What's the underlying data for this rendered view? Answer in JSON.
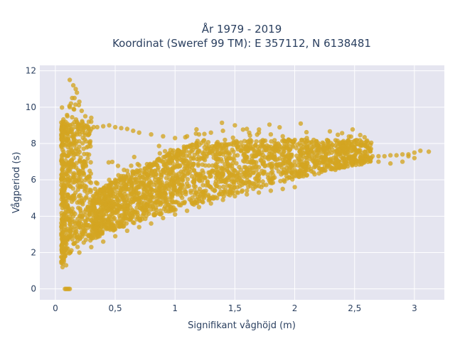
{
  "chart_data": {
    "type": "scatter",
    "title_line1": "År 1979 - 2019",
    "title_line2": "Koordinat (Sweref 99 TM): E 357112, N 6138481",
    "xlabel": "Signifikant våghöjd (m)",
    "ylabel": "Vågperiod (s)",
    "xlim": [
      -0.13,
      3.25
    ],
    "ylim": [
      -0.6,
      12.3
    ],
    "grid": true,
    "marker_color": "#D4A521",
    "background_color": "#E5E5F0",
    "x_ticks": [
      {
        "value": 0,
        "label": "0"
      },
      {
        "value": 0.5,
        "label": "0,5"
      },
      {
        "value": 1,
        "label": "1"
      },
      {
        "value": 1.5,
        "label": "1,5"
      },
      {
        "value": 2,
        "label": "2"
      },
      {
        "value": 2.5,
        "label": "2,5"
      },
      {
        "value": 3,
        "label": "3"
      }
    ],
    "y_ticks": [
      {
        "value": 0,
        "label": "0"
      },
      {
        "value": 2,
        "label": "2"
      },
      {
        "value": 4,
        "label": "4"
      },
      {
        "value": 6,
        "label": "6"
      },
      {
        "value": 8,
        "label": "8"
      },
      {
        "value": 10,
        "label": "10"
      },
      {
        "value": 12,
        "label": "12"
      }
    ],
    "series": [
      {
        "x": [
          0.06,
          0.07,
          0.08,
          0.05,
          0.06,
          0.08,
          0.1,
          0.12,
          0.09,
          0.07,
          0.1,
          0.12,
          0.15,
          0.18,
          0.2,
          0.22,
          0.1,
          0.13,
          0.16,
          0.19,
          0.25,
          0.3,
          0.35,
          0.4,
          0.45,
          0.5,
          0.55,
          0.6,
          0.65,
          0.7,
          0.75,
          0.8,
          0.85,
          0.9,
          0.95,
          1.0,
          1.05,
          1.1,
          1.15,
          1.2,
          1.25,
          1.3,
          1.35,
          1.4,
          1.45,
          1.5,
          1.55,
          1.6,
          1.65,
          1.7,
          1.75,
          1.8,
          1.85,
          1.9,
          1.95,
          2.0,
          2.05,
          2.1,
          2.15,
          2.2,
          2.25,
          2.3,
          2.35,
          2.4,
          2.45,
          2.5,
          2.55,
          2.6,
          2.65,
          2.7,
          2.75,
          2.8,
          2.85,
          2.9,
          2.95,
          3.0,
          3.05,
          3.12,
          0.12,
          0.15,
          0.18,
          0.2,
          0.22,
          0.25,
          0.28,
          0.32,
          0.12,
          0.14,
          0.17,
          0.11,
          0.13,
          0.15,
          0.3,
          0.35,
          0.4,
          0.45,
          0.5,
          0.55,
          0.6,
          0.65,
          0.7,
          0.8,
          0.9,
          1.0,
          1.1,
          1.2,
          1.3,
          1.4,
          1.5,
          1.6,
          1.7,
          1.8,
          1.9,
          2.0,
          2.1,
          2.2,
          0.2,
          0.3,
          0.4,
          0.5,
          0.6,
          0.7,
          0.8,
          0.9,
          1.0,
          1.1,
          1.2,
          1.3,
          1.4,
          1.5,
          1.6,
          1.7,
          1.8,
          1.9,
          2.0,
          0.15,
          0.25,
          0.35,
          0.45,
          0.55,
          0.65,
          0.75,
          0.85,
          0.95,
          1.05,
          1.15,
          1.25,
          1.35,
          1.45,
          1.55,
          1.65,
          1.75,
          1.85,
          1.95,
          2.05,
          2.15,
          2.25,
          2.35,
          0.08,
          0.09,
          0.1,
          0.11,
          0.12,
          0.5,
          0.6,
          0.7,
          1.6,
          1.65,
          1.55,
          2.05,
          2.3,
          2.4,
          2.6,
          2.7,
          2.8,
          2.9,
          3.0,
          2.95,
          0.06,
          0.07,
          0.08,
          0.18,
          0.28,
          0.38,
          0.48,
          0.58,
          0.68,
          0.78,
          0.88,
          0.98,
          1.08,
          1.18,
          1.28,
          1.38,
          1.48,
          1.58,
          1.68,
          1.78,
          1.88,
          1.98,
          2.08,
          2.18,
          2.28,
          2.38,
          2.48
        ],
        "y": [
          1.4,
          1.6,
          1.8,
          1.5,
          2.0,
          2.4,
          2.8,
          3.2,
          1.3,
          1.7,
          6.5,
          7.5,
          8.0,
          8.5,
          8.8,
          9.0,
          9.5,
          10.2,
          10.5,
          9.0,
          3.2,
          3.4,
          3.6,
          3.8,
          4.0,
          4.2,
          4.4,
          4.6,
          4.8,
          5.0,
          5.1,
          5.2,
          5.3,
          5.4,
          5.5,
          5.6,
          5.7,
          5.8,
          5.9,
          6.0,
          6.1,
          6.2,
          6.3,
          6.35,
          6.4,
          6.5,
          6.55,
          6.6,
          6.65,
          6.7,
          6.75,
          6.8,
          6.85,
          6.9,
          6.95,
          7.0,
          7.0,
          7.05,
          7.05,
          7.1,
          7.1,
          7.15,
          7.15,
          7.2,
          7.2,
          7.2,
          7.25,
          7.25,
          7.3,
          7.3,
          7.3,
          7.35,
          7.35,
          7.4,
          7.4,
          7.5,
          7.6,
          7.55,
          11.5,
          11.2,
          10.8,
          10.3,
          9.8,
          9.5,
          9.2,
          8.9,
          10.0,
          10.5,
          11.0,
          6.0,
          5.0,
          4.0,
          8.8,
          8.9,
          8.95,
          9.0,
          8.9,
          8.85,
          8.8,
          8.7,
          8.6,
          8.5,
          8.4,
          8.3,
          8.4,
          8.5,
          8.6,
          8.7,
          9.0,
          8.8,
          8.6,
          8.5,
          8.4,
          8.2,
          8.1,
          8.0,
          2.0,
          2.3,
          2.6,
          2.9,
          3.2,
          3.4,
          3.6,
          3.9,
          4.1,
          4.3,
          4.5,
          4.7,
          4.9,
          5.1,
          5.2,
          5.3,
          5.4,
          5.5,
          5.6,
          5.0,
          5.5,
          5.8,
          6.0,
          6.2,
          6.4,
          6.6,
          6.8,
          7.0,
          7.1,
          7.2,
          7.3,
          7.4,
          7.5,
          7.6,
          7.7,
          7.8,
          7.8,
          7.9,
          7.9,
          7.8,
          7.7,
          7.6,
          0.0,
          0.0,
          0.0,
          0.0,
          0.0,
          6.0,
          6.5,
          6.8,
          7.7,
          7.8,
          7.6,
          6.5,
          6.6,
          6.7,
          7.1,
          7.0,
          6.9,
          7.0,
          7.2,
          7.3,
          1.2,
          1.5,
          2.2,
          3.0,
          3.5,
          4.2,
          4.8,
          5.2,
          5.6,
          5.8,
          6.0,
          6.1,
          6.2,
          6.3,
          6.4,
          6.5,
          6.6,
          6.7,
          6.75,
          6.8,
          6.8,
          6.8,
          6.8,
          6.8,
          6.8,
          6.8,
          6.8
        ]
      }
    ]
  }
}
